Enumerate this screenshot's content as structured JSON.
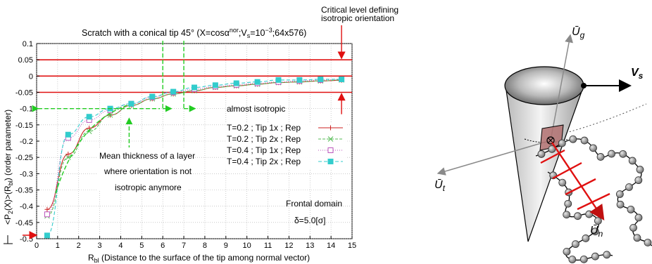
{
  "chart_data": {
    "type": "line",
    "title": "Scratch with a conical tip 45° (X=cosα^nor;V_s=10^-3;64x576)",
    "title_parts": {
      "a": "Scratch with a conical tip 45° (X=cosα",
      "sup1": "nor",
      "b": ";V",
      "sub1": "s",
      "c": "=10",
      "sup2": "−3",
      "d": ";64x576)"
    },
    "xlabel": "R_bl (Distance to the surface of the tip among normal vector)",
    "xlabel_parts": {
      "main": "R",
      "sub": "bl",
      "rest": " (Distance to the surface of the tip among normal vector)"
    },
    "ylabel": "<P_2(X)>(R_bl) (order parameter)",
    "ylabel_parts": {
      "a": "<P",
      "sub1": "2",
      "b": "(X)>(R",
      "sub2": "bl",
      "c": ") (order parameter)"
    },
    "xlim": [
      0,
      15
    ],
    "ylim": [
      -0.5,
      0.1
    ],
    "xticks": [
      "0",
      "1",
      "2",
      "3",
      "4",
      "5",
      "6",
      "7",
      "8",
      "9",
      "10",
      "11",
      "12",
      "13",
      "14",
      "15"
    ],
    "yticks": [
      "0.1",
      "0.05",
      "0",
      "-0.05",
      "-0.1",
      "-0.15",
      "-0.2",
      "-0.25",
      "-0.3",
      "-0.35",
      "-0.4",
      "-0.45",
      "-0.5"
    ],
    "reference_levels": [
      0.05,
      0,
      -0.05
    ],
    "isotropic_threshold": -0.1,
    "thickness_markers_x": [
      6,
      7
    ],
    "legend_position": "center-right",
    "x": [
      0.5,
      1.5,
      2.5,
      3.5,
      4.5,
      5.5,
      6.5,
      7.5,
      8.5,
      9.5,
      10.5,
      11.5,
      12.5,
      13.5,
      14.5
    ],
    "series": [
      {
        "name": "T=0.2 ; Tip 1x ; Rep",
        "color": "#cc2222",
        "marker": "plus",
        "values": [
          -0.41,
          -0.24,
          -0.16,
          -0.12,
          -0.09,
          -0.07,
          -0.055,
          -0.045,
          -0.035,
          -0.03,
          -0.025,
          -0.02,
          -0.018,
          -0.015,
          -0.013
        ]
      },
      {
        "name": "T=0.2 ; Tip 2x ; Rep",
        "color": "#55bb55",
        "marker": "x",
        "values": [
          -0.43,
          -0.25,
          -0.17,
          -0.12,
          -0.09,
          -0.07,
          -0.055,
          -0.045,
          -0.035,
          -0.03,
          -0.025,
          -0.02,
          -0.018,
          -0.015,
          -0.012
        ]
      },
      {
        "name": "T=0.4 ; Tip 1x ; Rep",
        "color": "#bb55bb",
        "marker": "square-open",
        "values": [
          -0.425,
          -0.19,
          -0.135,
          -0.105,
          -0.085,
          -0.065,
          -0.05,
          -0.04,
          -0.032,
          -0.027,
          -0.022,
          -0.018,
          -0.015,
          -0.012,
          -0.01
        ]
      },
      {
        "name": "T=0.4 ; Tip 2x ; Rep",
        "color": "#33cccc",
        "marker": "square-filled",
        "values": [
          -0.49,
          -0.18,
          -0.125,
          -0.1,
          -0.085,
          -0.063,
          -0.048,
          -0.035,
          -0.028,
          -0.022,
          -0.018,
          -0.012,
          -0.012,
          -0.01,
          -0.01
        ]
      }
    ],
    "annotations": {
      "critical_1": "Critical level defining",
      "critical_2": "isotropic orientation",
      "almost_isotropic": "almost isotropic",
      "mean_1": "Mean thickness of a layer",
      "mean_2": "where orientation is not",
      "mean_3": "isotropic anymore",
      "frontal": "Frontal domain",
      "delta": "δ=5.0[σ]"
    }
  },
  "diagram": {
    "labels": {
      "Ug": "Ū",
      "Ug_sub": "g",
      "Vs": "V",
      "Vs_sub": "s",
      "Ut": "Ū",
      "Ut_sub": "t",
      "Un": "Ū",
      "Un_sub": "n"
    },
    "colors": {
      "cone_dark": "#9a9a9a",
      "cone_light": "#f2f2f2",
      "patch": "#b07070",
      "red": "#e01010",
      "bead": "#8a8a8a"
    }
  }
}
